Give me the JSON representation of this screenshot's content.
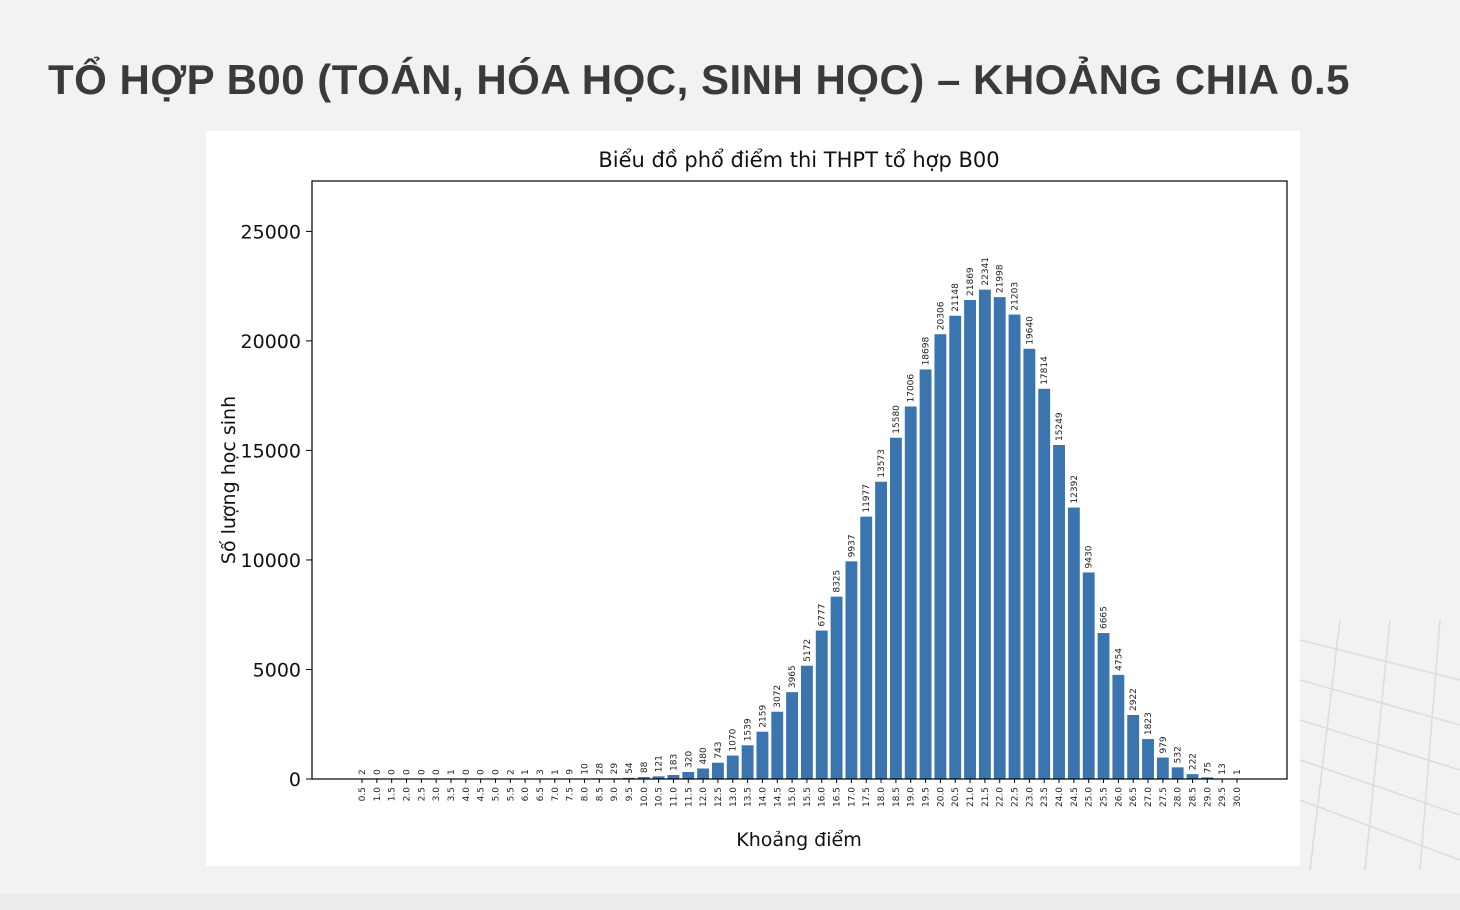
{
  "slide": {
    "title": "TỔ HỢP B00 (TOÁN, HÓA HỌC, SINH HỌC) – KHOẢNG CHIA 0.5"
  },
  "colors": {
    "bar": "#3b75af",
    "background": "#f2f2f2",
    "title_text": "#3a3a3a"
  },
  "chart_data": {
    "type": "bar",
    "title": "Biểu đồ phổ điểm thi THPT tổ hợp B00",
    "xlabel": "Khoảng điểm",
    "ylabel": "Số lượng học sinh",
    "ylim": [
      0,
      27300
    ],
    "yticks": [
      0,
      5000,
      10000,
      15000,
      20000,
      25000
    ],
    "grid": false,
    "categories": [
      "0.5",
      "1.0",
      "1.5",
      "2.0",
      "2.5",
      "3.0",
      "3.5",
      "4.0",
      "4.5",
      "5.0",
      "5.5",
      "6.0",
      "6.5",
      "7.0",
      "7.5",
      "8.0",
      "8.5",
      "9.0",
      "9.5",
      "10.0",
      "10.5",
      "11.0",
      "11.5",
      "12.0",
      "12.5",
      "13.0",
      "13.5",
      "14.0",
      "14.5",
      "15.0",
      "15.5",
      "16.0",
      "16.5",
      "17.0",
      "17.5",
      "18.0",
      "18.5",
      "19.0",
      "19.5",
      "20.0",
      "20.5",
      "21.0",
      "21.5",
      "22.0",
      "22.5",
      "23.0",
      "23.5",
      "24.0",
      "24.5",
      "25.0",
      "25.5",
      "26.0",
      "26.5",
      "27.0",
      "27.5",
      "28.0",
      "28.5",
      "29.0",
      "29.5",
      "30.0"
    ],
    "values": [
      2,
      0,
      0,
      0,
      0,
      0,
      1,
      0,
      0,
      0,
      2,
      1,
      3,
      1,
      9,
      10,
      28,
      29,
      54,
      88,
      121,
      183,
      320,
      480,
      743,
      1070,
      1539,
      2159,
      3072,
      3965,
      5172,
      6777,
      8325,
      9937,
      11977,
      13573,
      15580,
      17006,
      18698,
      20306,
      21148,
      21869,
      22341,
      21998,
      21203,
      19640,
      17814,
      15249,
      12392,
      9430,
      6665,
      4754,
      2922,
      1823,
      979,
      532,
      222,
      75,
      13,
      1
    ]
  }
}
